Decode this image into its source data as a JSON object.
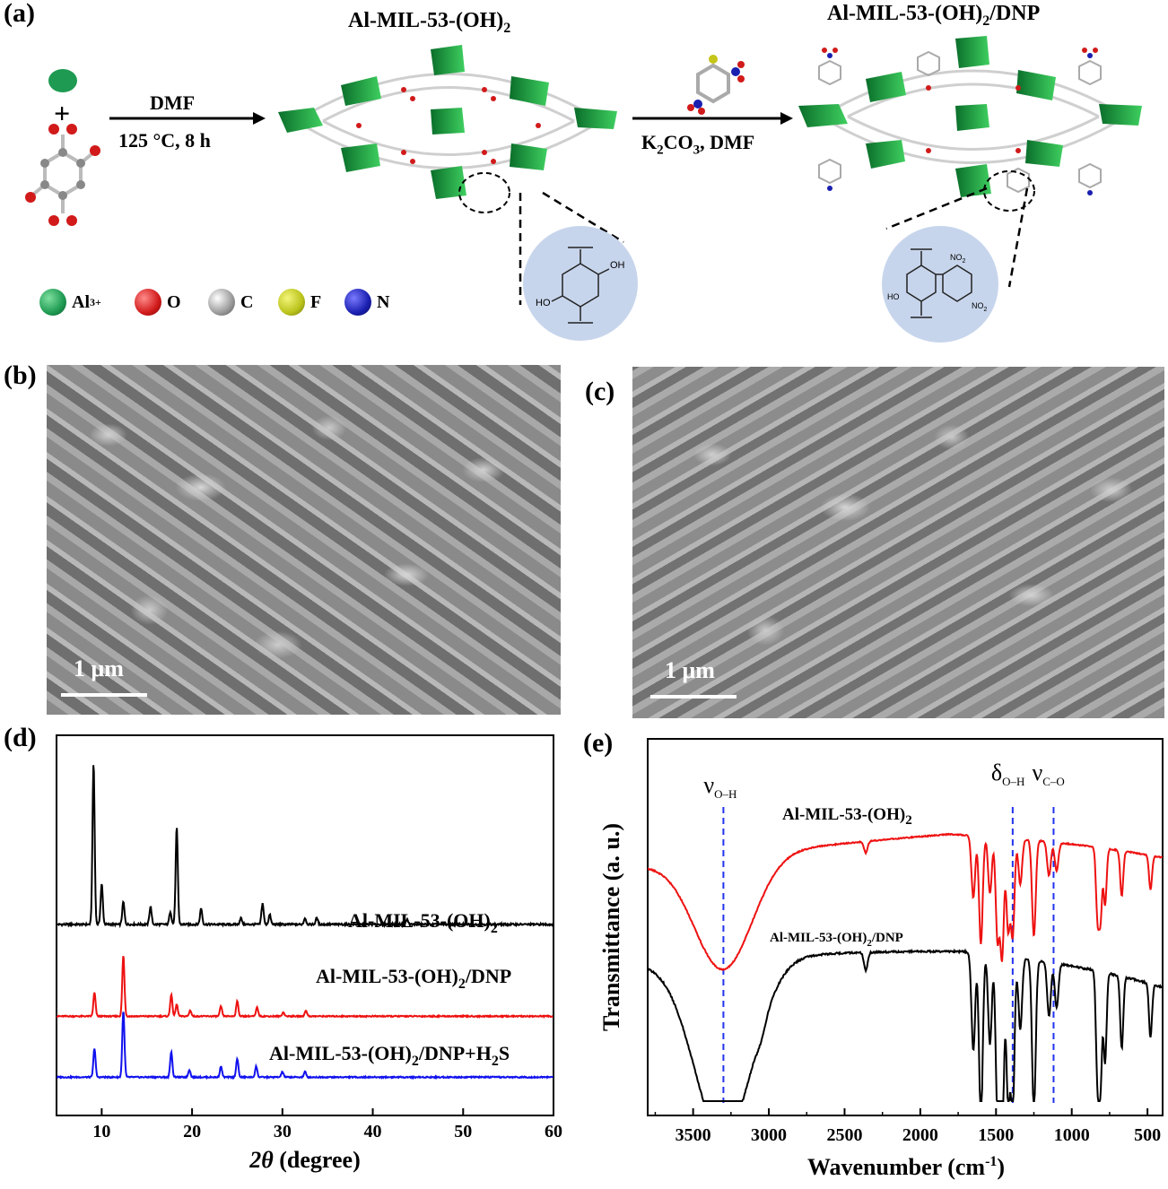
{
  "panels": {
    "a": {
      "label": "(a)",
      "mof_title_base": "Al-MIL-53-(OH)",
      "mof_title_sub": "2",
      "mof_dnp_title_base": "Al-MIL-53-(OH)",
      "mof_dnp_title_sub": "2",
      "mof_dnp_title_suffix": "/DNP",
      "plus": "+",
      "step1_top": "DMF",
      "step1_bottom": "125 °C, 8 h",
      "step2_base": "K",
      "step2_sub": "2",
      "step2_mid": "CO",
      "step2_sub2": "3",
      "step2_suffix": ", DMF",
      "inset1_labels": [
        "OH",
        "HO"
      ],
      "inset2_labels": [
        "NO",
        "2",
        "HO",
        "NO",
        "2"
      ],
      "legend": [
        {
          "text": "Al",
          "sup": "3+",
          "color": "#1e9a52"
        },
        {
          "text": "O",
          "sup": "",
          "color": "#d11a1a"
        },
        {
          "text": "C",
          "sup": "",
          "color": "#9a9a9a"
        },
        {
          "text": "F",
          "sup": "",
          "color": "#b9c31a"
        },
        {
          "text": "N",
          "sup": "",
          "color": "#1a1fb0"
        }
      ]
    },
    "b": {
      "label": "(b)",
      "scale": "1 μm"
    },
    "c": {
      "label": "(c)",
      "scale": "1 μm"
    },
    "d": {
      "label": "(d)"
    },
    "e": {
      "label": "(e)"
    }
  },
  "chart_data": [
    {
      "type": "line",
      "panel": "d",
      "xlabel_italic": "2θ",
      "xlabel": " (degree)",
      "xlim": [
        5,
        60
      ],
      "xticks": [
        10,
        20,
        30,
        40,
        50,
        60
      ],
      "series": [
        {
          "name": "Al-MIL-53-(OH)2",
          "label_base": "Al-MIL-53-(OH)",
          "label_sub": "2",
          "label_suffix": "",
          "label_sub2": "",
          "color": "#000000",
          "peaks": [
            [
              9.1,
              1.0
            ],
            [
              10.0,
              0.25
            ],
            [
              12.4,
              0.14
            ],
            [
              15.4,
              0.11
            ],
            [
              17.6,
              0.08
            ],
            [
              18.3,
              0.6
            ],
            [
              21.0,
              0.1
            ],
            [
              25.4,
              0.04
            ],
            [
              27.8,
              0.13
            ],
            [
              28.6,
              0.06
            ],
            [
              32.5,
              0.04
            ],
            [
              33.8,
              0.04
            ],
            [
              43.8,
              0.03
            ]
          ]
        },
        {
          "name": "Al-MIL-53-(OH)2/DNP",
          "label_base": "Al-MIL-53-(OH)",
          "label_sub": "2",
          "label_suffix": "/DNP",
          "label_sub2": "",
          "color": "#ee1111",
          "peaks": [
            [
              9.2,
              0.24
            ],
            [
              12.4,
              0.62
            ],
            [
              17.7,
              0.22
            ],
            [
              18.3,
              0.12
            ],
            [
              19.8,
              0.06
            ],
            [
              23.2,
              0.1
            ],
            [
              25.0,
              0.15
            ],
            [
              27.2,
              0.09
            ],
            [
              30.1,
              0.04
            ],
            [
              32.6,
              0.06
            ]
          ]
        },
        {
          "name": "Al-MIL-53-(OH)2/DNP+H2S",
          "label_base": "Al-MIL-53-(OH)",
          "label_sub": "2",
          "label_suffix": "/DNP+H",
          "label_sub2": "2",
          "label_end": "S",
          "color": "#1111ee",
          "peaks": [
            [
              9.2,
              0.27
            ],
            [
              12.4,
              0.62
            ],
            [
              17.7,
              0.24
            ],
            [
              19.7,
              0.07
            ],
            [
              23.2,
              0.1
            ],
            [
              25.0,
              0.17
            ],
            [
              27.1,
              0.1
            ],
            [
              30.0,
              0.05
            ],
            [
              32.5,
              0.05
            ]
          ]
        }
      ]
    },
    {
      "type": "line",
      "panel": "e",
      "xlabel": "Wavenumber (cm",
      "xlabel_sup": "-1",
      "xlabel_end": ")",
      "ylabel": "Transmittance (a. u.)",
      "xlim": [
        3800,
        400
      ],
      "xticks": [
        3500,
        3000,
        2500,
        2000,
        1500,
        1000,
        500
      ],
      "annotations": [
        {
          "sym": "ν",
          "sub": "O–H",
          "x": 3300
        },
        {
          "sym": "δ",
          "sub": "O–H",
          "x": 1390
        },
        {
          "sym": "ν",
          "sub": "C–O",
          "x": 1120
        }
      ],
      "series": [
        {
          "name": "Al-MIL-53-(OH)2",
          "label_base": "Al-MIL-53-(OH)",
          "label_sub": "2",
          "label_suffix": "",
          "color": "#ee1111"
        },
        {
          "name": "Al-MIL-53-(OH)2/DNP",
          "label_base": "Al-MIL-53-(OH)",
          "label_sub": "2",
          "label_suffix": "/DNP",
          "color": "#000000"
        }
      ]
    }
  ]
}
